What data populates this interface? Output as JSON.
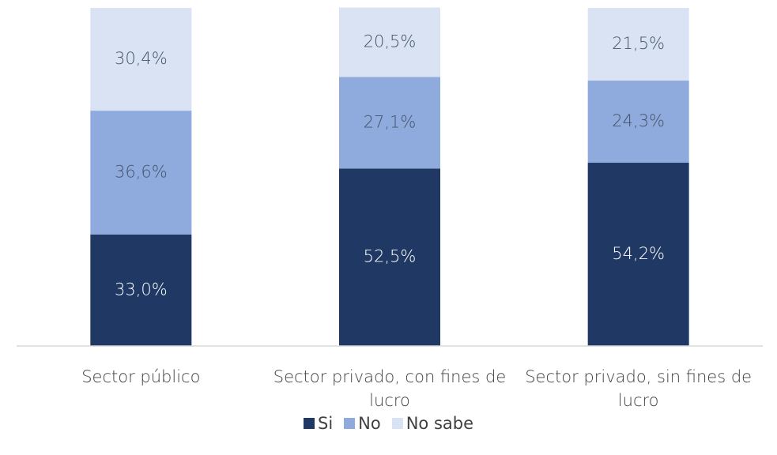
{
  "chart_data": {
    "type": "stacked_bar",
    "categories": [
      "Sector público",
      "Sector privado, con fines de lucro",
      "Sector privado, sin fines de lucro"
    ],
    "series": [
      {
        "name": "Si",
        "color": "#1f3864",
        "values": [
          33.0,
          52.5,
          54.2
        ],
        "value_labels": [
          "33,0%",
          "52,5%",
          "54,2%"
        ]
      },
      {
        "name": "No",
        "color": "#8faadc",
        "values": [
          36.6,
          27.1,
          24.3
        ],
        "value_labels": [
          "36,6%",
          "27,1%",
          "24,3%"
        ]
      },
      {
        "name": "No sabe",
        "color": "#dae3f3",
        "values": [
          30.4,
          20.5,
          21.5
        ],
        "value_labels": [
          "30,4%",
          "20,5%",
          "21,5%"
        ]
      }
    ],
    "ylim": [
      0,
      100
    ],
    "legend": "bottom"
  }
}
